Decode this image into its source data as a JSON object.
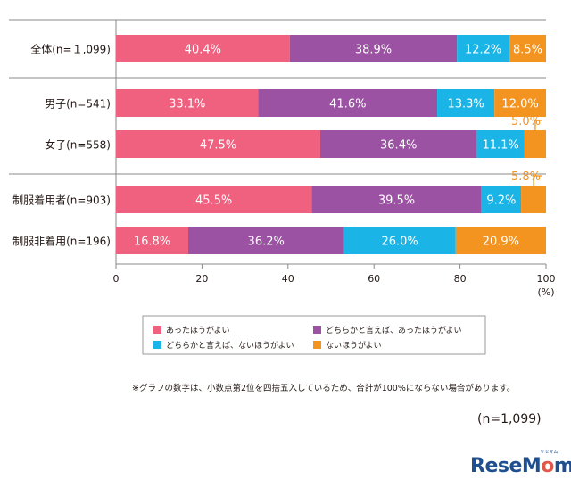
{
  "chart_data": {
    "type": "bar",
    "orientation": "horizontal",
    "stacked": true,
    "categories": [
      "全体(n=１,099)",
      "男子(n=541)",
      "女子(n=558)",
      "制服着用者(n=903)",
      "制服非着用(n=196)"
    ],
    "series": [
      {
        "name": "あったほうがよい",
        "color": "#f0607f",
        "values": [
          40.4,
          33.1,
          47.5,
          45.5,
          16.8
        ],
        "labels": [
          "40.4%",
          "33.1%",
          "47.5%",
          "45.5%",
          "16.8%"
        ]
      },
      {
        "name": "どちらかと言えば、あったほうがよい",
        "color": "#9b52a2",
        "values": [
          38.9,
          41.6,
          36.4,
          39.5,
          36.2
        ],
        "labels": [
          "38.9%",
          "41.6%",
          "36.4%",
          "39.5%",
          "36.2%"
        ]
      },
      {
        "name": "どちらかと言えば、ないほうがよい",
        "color": "#1ab4e6",
        "values": [
          12.2,
          13.3,
          11.1,
          9.2,
          26.0
        ],
        "labels": [
          "12.2%",
          "13.3%",
          "11.1%",
          "9.2%",
          "26.0%"
        ]
      },
      {
        "name": "ないほうがよい",
        "color": "#f39420",
        "values": [
          8.5,
          12.0,
          5.0,
          5.8,
          20.9
        ],
        "labels": [
          "8.5%",
          "12.0%",
          "5.0%",
          "5.8%",
          "20.9%"
        ]
      }
    ],
    "xlim": [
      0,
      100
    ],
    "xticks": [
      "0",
      "20",
      "40",
      "60",
      "80",
      "100"
    ],
    "xunit": "(%)",
    "legend_position": "bottom-center",
    "outside_labels": [
      3,
      3,
      0,
      0,
      0
    ]
  },
  "footnote": "※グラフの数字は、小数点第2位を四捨五入しているため、合計が100%にならない場合があります。",
  "total_n": "(n=1,099)",
  "logo": {
    "main_a": "ReseM",
    "main_o": "o",
    "main_b": "m",
    "kana": "リセマム"
  }
}
